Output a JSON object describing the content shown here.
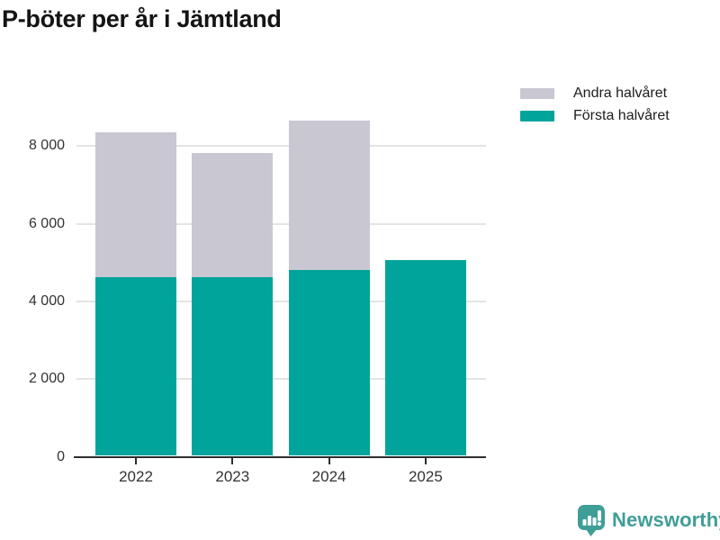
{
  "title": "P-böter per år i Jämtland",
  "legend": [
    {
      "label": "Andra halvåret",
      "color": "#c9c7d2"
    },
    {
      "label": "Första halvåret",
      "color": "#00a49b"
    }
  ],
  "chart_data": {
    "type": "bar",
    "stacked": true,
    "title": "P-böter per år i Jämtland",
    "categories": [
      "2022",
      "2023",
      "2024",
      "2025"
    ],
    "series": [
      {
        "name": "Första halvåret",
        "color": "#00a49b",
        "values": [
          4600,
          4610,
          4790,
          5045
        ]
      },
      {
        "name": "Andra halvåret",
        "color": "#c9c7d2",
        "values": [
          3730,
          3185,
          3845,
          0
        ]
      }
    ],
    "totals": [
      8330,
      7795,
      8635,
      5045
    ],
    "xlabel": "",
    "ylabel": "",
    "ylim": [
      0,
      8800
    ],
    "yticks": [
      0,
      2000,
      4000,
      6000,
      8000
    ],
    "ytick_labels": [
      "0",
      "2 000",
      "4 000",
      "6 000",
      "8 000"
    ],
    "grid": true,
    "legend_position": "top-right"
  },
  "branding": {
    "logo_text": "Newsworthy",
    "logo_color": "#3f9e97"
  },
  "colors": {
    "background": "#ffffff",
    "first_half": "#00a49b",
    "second_half": "#c9c7d2",
    "gridline": "#e4e4e4",
    "axis": "#2d2d2d",
    "text": "#333333"
  }
}
